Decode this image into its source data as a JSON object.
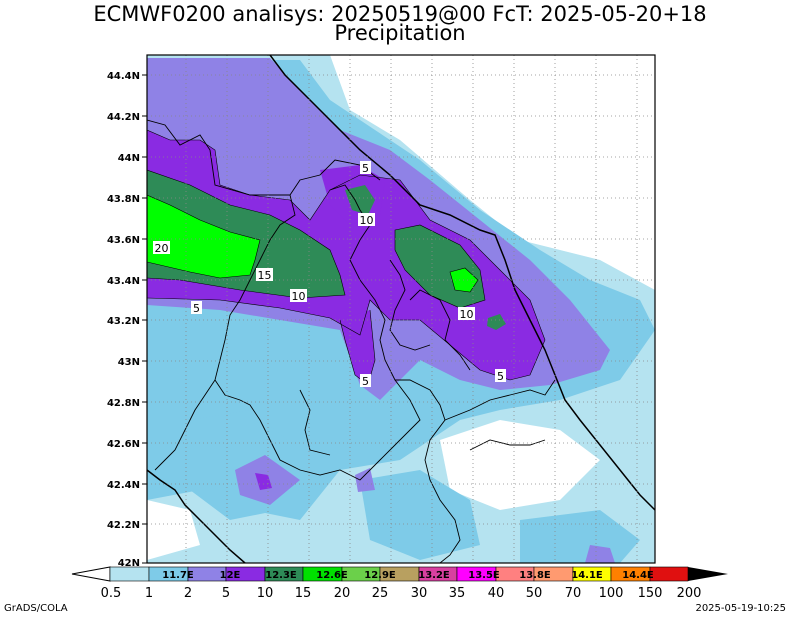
{
  "title": {
    "line1": "ECMWF0200 analisys: 20250519@00 FcT: 2025-05-20+18",
    "line2": "Precipitation"
  },
  "map": {
    "lat_labels": [
      "44.4N",
      "44.2N",
      "44N",
      "43.8N",
      "43.6N",
      "43.4N",
      "43.2N",
      "43N",
      "42.8N",
      "42.6N",
      "42.4N",
      "42.2N",
      "42N"
    ],
    "contour_labels": [
      "5",
      "10",
      "20",
      "15",
      "10",
      "5",
      "10",
      "5",
      "5"
    ],
    "colors": {
      "c0": "#b5e3f0",
      "c1": "#7ecbe8",
      "c2": "#8f82e6",
      "c3": "#8a2be2",
      "c4": "#2e8b57",
      "c5": "#00ff00"
    }
  },
  "colorbar": {
    "labels": [
      "0.5",
      "1",
      "2",
      "5",
      "10",
      "15",
      "20",
      "25",
      "30",
      "35",
      "40",
      "50",
      "70",
      "100",
      "150",
      "200"
    ],
    "sublabels": [
      "11.7E",
      "12E",
      "12.3E",
      "12.6E",
      "12.9E",
      "13.2E",
      "13.5E",
      "13.8E",
      "14.1E",
      "14.4E"
    ],
    "colors": [
      "#b5e3f0",
      "#7ecbe8",
      "#8f82e6",
      "#8a2be2",
      "#2e8b57",
      "#00e000",
      "#6bd04a",
      "#b8a060",
      "#d840a0",
      "#ff00ff",
      "#ff8080",
      "#ff9a70",
      "#ffff00",
      "#ff8000",
      "#e01010",
      "#800000"
    ]
  },
  "footer": {
    "credit": "GrADS/COLA",
    "timestamp": "2025-05-19-10:25"
  }
}
